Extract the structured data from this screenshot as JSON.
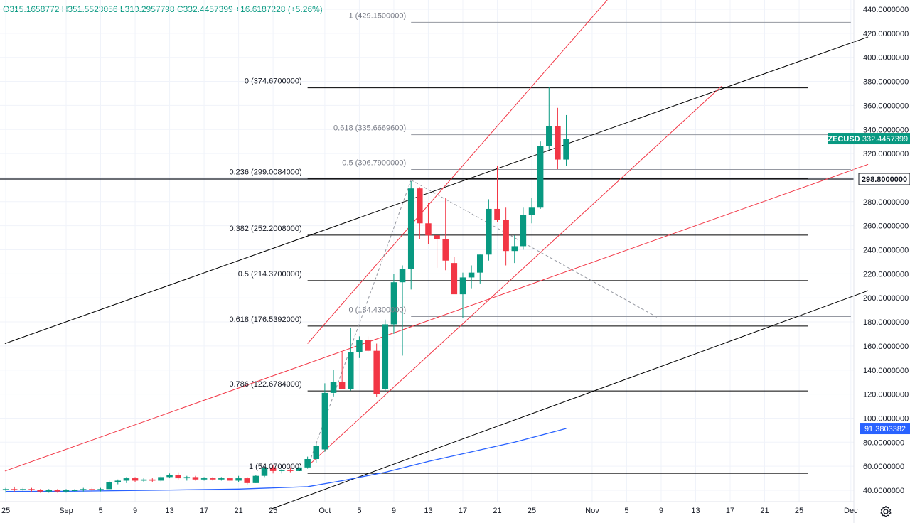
{
  "ohlc": {
    "open": "O315.1658772",
    "high": "H351.5523056",
    "low": "L310.2957798",
    "close": "C332.4457399",
    "change": "+16.6187228 (+5.26%)"
  },
  "colors": {
    "up": "#089981",
    "down": "#f23645",
    "ma": "#2962ff",
    "channel_black": "#000000",
    "channel_red": "#f23645",
    "fib_black": "#000000",
    "fib_gray": "#9598a1",
    "grid": "#f0f3fa",
    "symbol_badge": "#089981",
    "ma_badge": "#2962ff"
  },
  "chart_data": {
    "type": "candlestick",
    "symbol": "ZECUSD",
    "last_price_label": "332.4457399",
    "horizontal_line_label": "298.8000000",
    "ma_label": "91.3803382",
    "ylim": [
      34.5,
      449
    ],
    "y_ticks": [
      "40.0000000",
      "60.0000000",
      "80.0000000",
      "100.0000000",
      "120.0000000",
      "140.0000000",
      "160.0000000",
      "180.0000000",
      "200.0000000",
      "220.0000000",
      "240.0000000",
      "260.0000000",
      "280.0000000",
      "300.0000000",
      "320.0000000",
      "340.0000000",
      "360.0000000",
      "380.0000000",
      "400.0000000",
      "420.0000000",
      "440.0000000"
    ],
    "x_ticks": [
      {
        "label": "25",
        "day": -7
      },
      {
        "label": "Sep",
        "day": 0
      },
      {
        "label": "5",
        "day": 4
      },
      {
        "label": "9",
        "day": 8
      },
      {
        "label": "13",
        "day": 12
      },
      {
        "label": "17",
        "day": 16
      },
      {
        "label": "21",
        "day": 20
      },
      {
        "label": "25",
        "day": 24
      },
      {
        "label": "Oct",
        "day": 30
      },
      {
        "label": "5",
        "day": 34
      },
      {
        "label": "9",
        "day": 38
      },
      {
        "label": "13",
        "day": 42
      },
      {
        "label": "17",
        "day": 46
      },
      {
        "label": "21",
        "day": 50
      },
      {
        "label": "25",
        "day": 54
      },
      {
        "label": "Nov",
        "day": 61
      },
      {
        "label": "5",
        "day": 65
      },
      {
        "label": "9",
        "day": 69
      },
      {
        "label": "13",
        "day": 73
      },
      {
        "label": "17",
        "day": 77
      },
      {
        "label": "21",
        "day": 81
      },
      {
        "label": "25",
        "day": 85
      },
      {
        "label": "Dec",
        "day": 91
      }
    ],
    "candles": [
      {
        "day": -7,
        "o": 40,
        "h": 42,
        "l": 38,
        "c": 41
      },
      {
        "day": -6,
        "o": 41,
        "h": 43,
        "l": 39,
        "c": 40
      },
      {
        "day": -5,
        "o": 40,
        "h": 42,
        "l": 39,
        "c": 41
      },
      {
        "day": -4,
        "o": 41,
        "h": 42,
        "l": 39,
        "c": 40
      },
      {
        "day": -3,
        "o": 40,
        "h": 41,
        "l": 38,
        "c": 39
      },
      {
        "day": -2,
        "o": 39,
        "h": 41,
        "l": 38,
        "c": 40
      },
      {
        "day": -1,
        "o": 40,
        "h": 41,
        "l": 38,
        "c": 39
      },
      {
        "day": 0,
        "o": 39,
        "h": 41,
        "l": 38,
        "c": 40
      },
      {
        "day": 1,
        "o": 40,
        "h": 41,
        "l": 39,
        "c": 40
      },
      {
        "day": 2,
        "o": 40,
        "h": 42,
        "l": 39,
        "c": 41
      },
      {
        "day": 3,
        "o": 41,
        "h": 42,
        "l": 39,
        "c": 40
      },
      {
        "day": 4,
        "o": 40,
        "h": 42,
        "l": 39,
        "c": 41
      },
      {
        "day": 5,
        "o": 41,
        "h": 48,
        "l": 41,
        "c": 47
      },
      {
        "day": 6,
        "o": 47,
        "h": 49,
        "l": 45,
        "c": 48
      },
      {
        "day": 7,
        "o": 48,
        "h": 51,
        "l": 46,
        "c": 50
      },
      {
        "day": 8,
        "o": 50,
        "h": 51,
        "l": 47,
        "c": 48
      },
      {
        "day": 9,
        "o": 48,
        "h": 50,
        "l": 47,
        "c": 49
      },
      {
        "day": 10,
        "o": 49,
        "h": 50,
        "l": 47,
        "c": 48
      },
      {
        "day": 11,
        "o": 48,
        "h": 52,
        "l": 47,
        "c": 51
      },
      {
        "day": 12,
        "o": 51,
        "h": 54,
        "l": 50,
        "c": 53
      },
      {
        "day": 13,
        "o": 53,
        "h": 55,
        "l": 49,
        "c": 50
      },
      {
        "day": 14,
        "o": 50,
        "h": 52,
        "l": 48,
        "c": 51
      },
      {
        "day": 15,
        "o": 51,
        "h": 52,
        "l": 48,
        "c": 49
      },
      {
        "day": 16,
        "o": 49,
        "h": 51,
        "l": 48,
        "c": 50
      },
      {
        "day": 17,
        "o": 50,
        "h": 51,
        "l": 48,
        "c": 49
      },
      {
        "day": 18,
        "o": 49,
        "h": 51,
        "l": 48,
        "c": 50
      },
      {
        "day": 19,
        "o": 50,
        "h": 51,
        "l": 47,
        "c": 48
      },
      {
        "day": 20,
        "o": 48,
        "h": 52,
        "l": 47,
        "c": 50
      },
      {
        "day": 21,
        "o": 50,
        "h": 51,
        "l": 45,
        "c": 46
      },
      {
        "day": 22,
        "o": 46,
        "h": 53,
        "l": 46,
        "c": 52
      },
      {
        "day": 23,
        "o": 52,
        "h": 60,
        "l": 51,
        "c": 59
      },
      {
        "day": 24,
        "o": 59,
        "h": 61,
        "l": 54,
        "c": 56
      },
      {
        "day": 25,
        "o": 56,
        "h": 58,
        "l": 54,
        "c": 57
      },
      {
        "day": 26,
        "o": 57,
        "h": 59,
        "l": 55,
        "c": 56
      },
      {
        "day": 27,
        "o": 56,
        "h": 60,
        "l": 54,
        "c": 59
      },
      {
        "day": 28,
        "o": 59,
        "h": 68,
        "l": 58,
        "c": 66
      },
      {
        "day": 29,
        "o": 66,
        "h": 79,
        "l": 63,
        "c": 77
      },
      {
        "day": 30,
        "o": 74,
        "h": 129,
        "l": 72,
        "c": 121
      },
      {
        "day": 31,
        "o": 121,
        "h": 140,
        "l": 118,
        "c": 130
      },
      {
        "day": 32,
        "o": 130,
        "h": 155,
        "l": 125,
        "c": 124
      },
      {
        "day": 33,
        "o": 124,
        "h": 175,
        "l": 123,
        "c": 155
      },
      {
        "day": 34,
        "o": 155,
        "h": 168,
        "l": 150,
        "c": 165
      },
      {
        "day": 35,
        "o": 165,
        "h": 168,
        "l": 155,
        "c": 156
      },
      {
        "day": 36,
        "o": 156,
        "h": 162,
        "l": 118,
        "c": 120
      },
      {
        "day": 37,
        "o": 124,
        "h": 182,
        "l": 122,
        "c": 178
      },
      {
        "day": 38,
        "o": 178,
        "h": 220,
        "l": 170,
        "c": 213
      },
      {
        "day": 39,
        "o": 213,
        "h": 227,
        "l": 152,
        "c": 224
      },
      {
        "day": 40,
        "o": 224,
        "h": 297,
        "l": 207,
        "c": 291
      },
      {
        "day": 41,
        "o": 291,
        "h": 292,
        "l": 249,
        "c": 262
      },
      {
        "day": 42,
        "o": 262,
        "h": 279,
        "l": 245,
        "c": 252
      },
      {
        "day": 43,
        "o": 252,
        "h": 251,
        "l": 225,
        "c": 249
      },
      {
        "day": 44,
        "o": 249,
        "h": 283,
        "l": 223,
        "c": 231
      },
      {
        "day": 45,
        "o": 229,
        "h": 234,
        "l": 204,
        "c": 203
      },
      {
        "day": 46,
        "o": 203,
        "h": 221,
        "l": 183,
        "c": 217
      },
      {
        "day": 47,
        "o": 217,
        "h": 227,
        "l": 208,
        "c": 221
      },
      {
        "day": 48,
        "o": 221,
        "h": 236,
        "l": 212,
        "c": 236
      },
      {
        "day": 49,
        "o": 236,
        "h": 282,
        "l": 231,
        "c": 274
      },
      {
        "day": 50,
        "o": 274,
        "h": 310,
        "l": 263,
        "c": 265
      },
      {
        "day": 51,
        "o": 265,
        "h": 275,
        "l": 227,
        "c": 239
      },
      {
        "day": 52,
        "o": 239,
        "h": 252,
        "l": 229,
        "c": 243
      },
      {
        "day": 53,
        "o": 243,
        "h": 275,
        "l": 240,
        "c": 269
      },
      {
        "day": 54,
        "o": 269,
        "h": 283,
        "l": 262,
        "c": 275
      },
      {
        "day": 55,
        "o": 275,
        "h": 330,
        "l": 274,
        "c": 326
      },
      {
        "day": 56,
        "o": 326,
        "h": 375,
        "l": 323,
        "c": 343
      },
      {
        "day": 57,
        "o": 343,
        "h": 358,
        "l": 307,
        "c": 315
      },
      {
        "day": 58,
        "o": 315,
        "h": 352,
        "l": 310,
        "c": 332
      }
    ],
    "ma": [
      {
        "day": -7,
        "v": 39
      },
      {
        "day": 0,
        "v": 39.2
      },
      {
        "day": 10,
        "v": 40
      },
      {
        "day": 20,
        "v": 41
      },
      {
        "day": 28,
        "v": 43
      },
      {
        "day": 32,
        "v": 48
      },
      {
        "day": 37,
        "v": 55
      },
      {
        "day": 42,
        "v": 64
      },
      {
        "day": 47,
        "v": 72
      },
      {
        "day": 52,
        "v": 80
      },
      {
        "day": 58,
        "v": 91.38
      }
    ],
    "fib_black": {
      "day_start": 28,
      "day_end": 86,
      "levels": [
        {
          "label": "0 (374.6700000)",
          "v": 374.67
        },
        {
          "label": "0.236 (299.0084000)",
          "v": 299.0084
        },
        {
          "label": "0.382 (252.2008000)",
          "v": 252.2008
        },
        {
          "label": "0.5 (214.3700000)",
          "v": 214.37
        },
        {
          "label": "0.618 (176.5392000)",
          "v": 176.5392
        },
        {
          "label": "0.786 (122.6784000)",
          "v": 122.6784
        },
        {
          "label": "1 (54.0700000)",
          "v": 54.07
        }
      ]
    },
    "fib_gray": {
      "day_start": 40,
      "day_end": 91,
      "levels": [
        {
          "label": "1 (429.1500000)",
          "v": 429.15
        },
        {
          "label": "0.618 (335.6669600)",
          "v": 335.66696
        },
        {
          "label": "0.5 (306.7900000)",
          "v": 306.79
        },
        {
          "label": "0 (184.4300000)",
          "v": 184.43
        }
      ]
    },
    "horizontal_line": 298.8,
    "trend_lines": [
      {
        "color": "black",
        "dash": false,
        "from": {
          "day": -7.1,
          "v": 162
        },
        "to": {
          "day": 93,
          "v": 417
        }
      },
      {
        "color": "black",
        "dash": false,
        "from": {
          "day": 23.6,
          "v": 24
        },
        "to": {
          "day": 93,
          "v": 206
        }
      },
      {
        "color": "red",
        "dash": false,
        "from": {
          "day": -7.1,
          "v": 56
        },
        "to": {
          "day": 93,
          "v": 311
        }
      },
      {
        "color": "red",
        "dash": false,
        "from": {
          "day": 28,
          "v": 162
        },
        "to": {
          "day": 64,
          "v": 458
        }
      },
      {
        "color": "red",
        "dash": false,
        "from": {
          "day": 28,
          "v": 60
        },
        "to": {
          "day": 76,
          "v": 376
        }
      },
      {
        "color": "gray",
        "dash": true,
        "from": {
          "day": 28,
          "v": 59
        },
        "to": {
          "day": 40,
          "v": 298
        }
      },
      {
        "color": "gray",
        "dash": true,
        "from": {
          "day": 40,
          "v": 298
        },
        "to": {
          "day": 68.5,
          "v": 184
        }
      }
    ]
  }
}
